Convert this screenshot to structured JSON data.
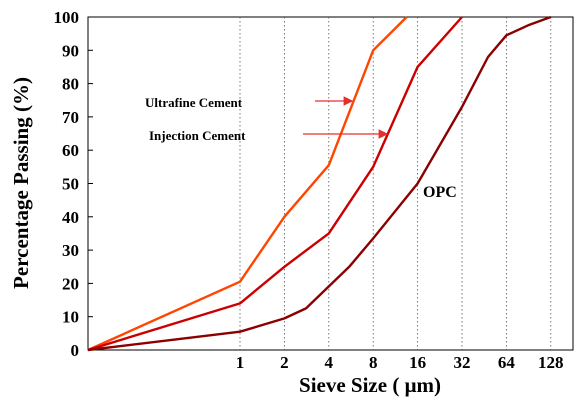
{
  "chart_data": {
    "type": "line",
    "xlabel": "Sieve Size ( μm)",
    "ylabel": "Percentage Passing (%)",
    "x_scale": "log2",
    "x_tick_values": [
      1,
      2,
      4,
      8,
      16,
      32,
      64,
      128
    ],
    "x_tick_labels": [
      "1",
      "2",
      "4",
      "8",
      "16",
      "32",
      "64",
      "128"
    ],
    "x_min_display": 0.06,
    "ylim": [
      0,
      100
    ],
    "y_ticks": [
      0,
      10,
      20,
      30,
      40,
      50,
      60,
      70,
      80,
      90,
      100
    ],
    "grid": "vertical dotted",
    "series": [
      {
        "name": "Ultrafine Cement",
        "color": "#ff4500",
        "points": [
          [
            0.06,
            0
          ],
          [
            1,
            20.5
          ],
          [
            2,
            40
          ],
          [
            4,
            55.5
          ],
          [
            8,
            90
          ],
          [
            13.5,
            100
          ]
        ]
      },
      {
        "name": "Injection Cement",
        "color": "#cc0000",
        "points": [
          [
            0.06,
            0
          ],
          [
            1,
            14
          ],
          [
            2,
            25
          ],
          [
            4,
            35
          ],
          [
            8,
            55
          ],
          [
            16,
            85
          ],
          [
            32,
            100
          ]
        ]
      },
      {
        "name": "OPC",
        "color": "#8b0000",
        "points": [
          [
            0.06,
            0
          ],
          [
            1,
            5.5
          ],
          [
            2,
            9.5
          ],
          [
            2.8,
            12.5
          ],
          [
            5.5,
            25
          ],
          [
            8,
            33.5
          ],
          [
            16,
            50
          ],
          [
            32,
            73
          ],
          [
            48,
            88
          ],
          [
            64,
            94.5
          ],
          [
            90,
            97.5
          ],
          [
            128,
            100
          ]
        ]
      }
    ],
    "annotations": [
      {
        "text": "Ultrafine Cement",
        "arrow": true
      },
      {
        "text": "Injection Cement",
        "arrow": true
      },
      {
        "text": "OPC",
        "arrow": false
      }
    ]
  }
}
